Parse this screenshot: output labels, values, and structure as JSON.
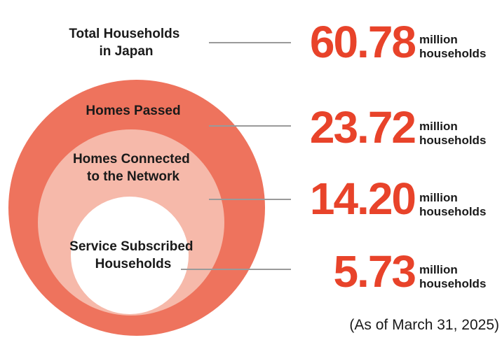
{
  "colors": {
    "outer_ring": "#ee735d",
    "middle_ring": "#f6b9aa",
    "inner_circle": "#ffffff",
    "value_text": "#e8432a",
    "leader_line": "#9a9a9a"
  },
  "rows": [
    {
      "label_line1": "Total Households",
      "label_line2": "in Japan",
      "value": "60.78",
      "unit_line1": "million",
      "unit_line2": "households"
    },
    {
      "label_line1": "Homes Passed",
      "label_line2": "",
      "value": "23.72",
      "unit_line1": "million",
      "unit_line2": "households"
    },
    {
      "label_line1": "Homes Connected",
      "label_line2": "to the Network",
      "value": "14.20",
      "unit_line1": "million",
      "unit_line2": "households"
    },
    {
      "label_line1": "Service Subscribed",
      "label_line2": "Households",
      "value": "5.73",
      "unit_line1": "million",
      "unit_line2": "households"
    }
  ],
  "footnote": "(As of March 31, 2025)"
}
